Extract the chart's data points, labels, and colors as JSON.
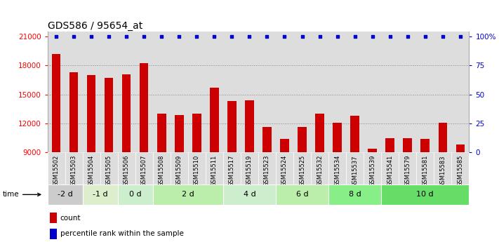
{
  "title": "GDS586 / 95654_at",
  "categories": [
    "GSM15502",
    "GSM15503",
    "GSM15504",
    "GSM15505",
    "GSM15506",
    "GSM15507",
    "GSM15508",
    "GSM15509",
    "GSM15510",
    "GSM15511",
    "GSM15517",
    "GSM15519",
    "GSM15523",
    "GSM15524",
    "GSM15525",
    "GSM15532",
    "GSM15534",
    "GSM15537",
    "GSM15539",
    "GSM15541",
    "GSM15579",
    "GSM15581",
    "GSM15583",
    "GSM15585"
  ],
  "bar_values": [
    19200,
    17300,
    17000,
    16700,
    17100,
    18200,
    13000,
    12900,
    13000,
    15700,
    14300,
    14400,
    11600,
    10400,
    11600,
    13000,
    12100,
    12800,
    9400,
    10500,
    10500,
    10400,
    12100,
    9800
  ],
  "bar_color": "#cc0000",
  "percentile_color": "#0000cc",
  "groups": [
    {
      "label": "-2 d",
      "start": 0,
      "end": 2,
      "color": "#cccccc"
    },
    {
      "label": "-1 d",
      "start": 2,
      "end": 4,
      "color": "#ddeecc"
    },
    {
      "label": "0 d",
      "start": 4,
      "end": 6,
      "color": "#cceecc"
    },
    {
      "label": "2 d",
      "start": 6,
      "end": 10,
      "color": "#bbeeaa"
    },
    {
      "label": "4 d",
      "start": 10,
      "end": 13,
      "color": "#cceecc"
    },
    {
      "label": "6 d",
      "start": 13,
      "end": 16,
      "color": "#bbeeaa"
    },
    {
      "label": "8 d",
      "start": 16,
      "end": 19,
      "color": "#88ee88"
    },
    {
      "label": "10 d",
      "start": 19,
      "end": 24,
      "color": "#66dd66"
    }
  ],
  "ylim_min": 9000,
  "ylim_max": 21500,
  "yticks": [
    9000,
    12000,
    15000,
    18000,
    21000
  ],
  "right_yticks": [
    0,
    25,
    50,
    75,
    100
  ],
  "right_ylabels": [
    "0",
    "25",
    "50",
    "75",
    "100%"
  ],
  "dotted_levels": [
    12000,
    15000,
    18000
  ],
  "background_color": "#ffffff",
  "grid_color": "#888888",
  "col_bg_color": "#dddddd",
  "title_fontsize": 10,
  "axis_fontsize": 7.5,
  "tick_fontsize": 6
}
